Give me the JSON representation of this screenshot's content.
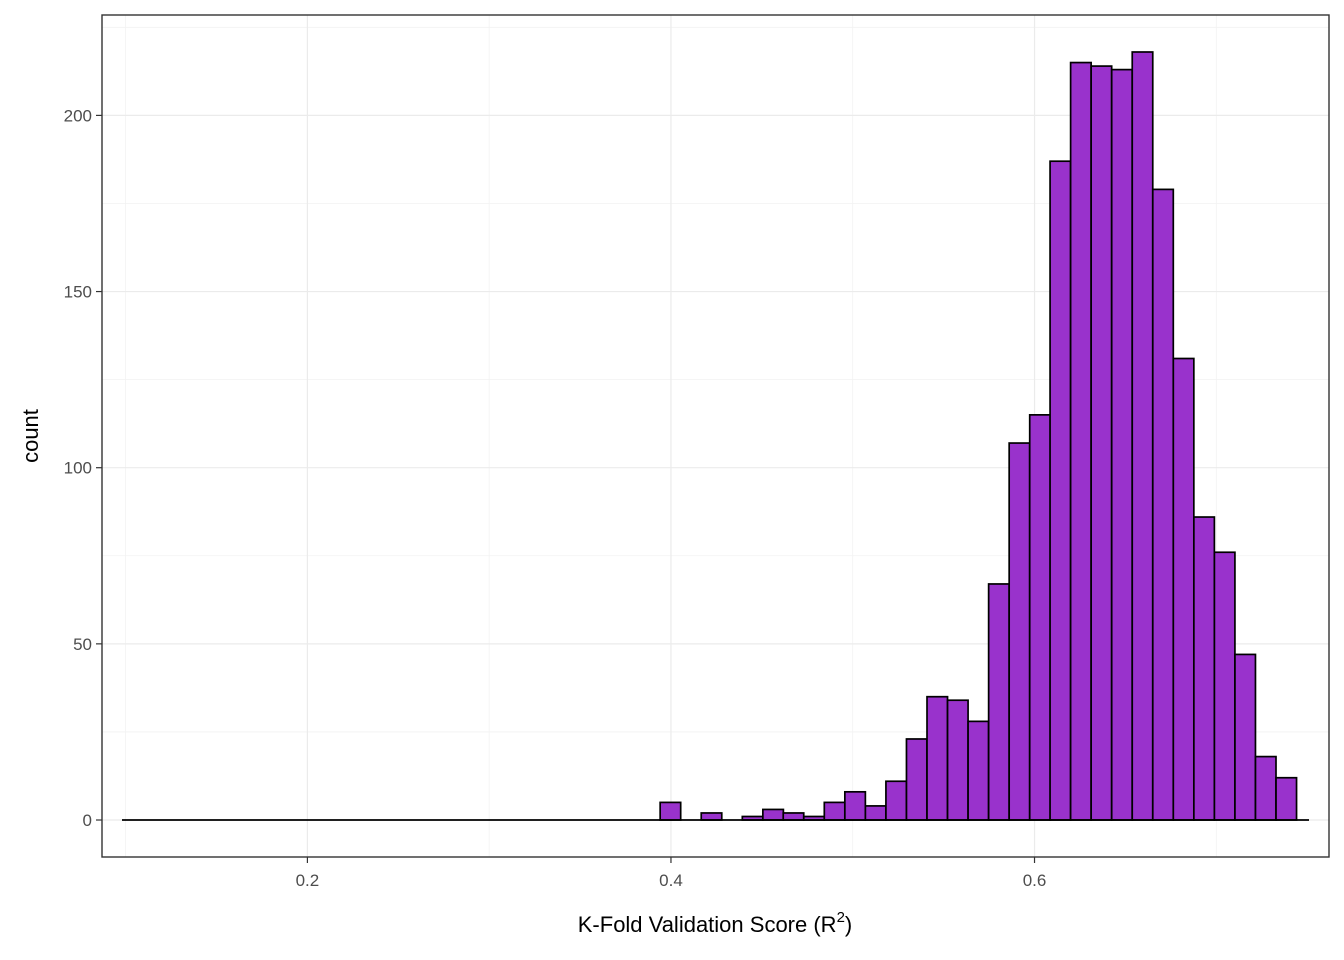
{
  "chart_data": {
    "type": "bar",
    "subtype": "histogram",
    "title": "",
    "xlabel": "K-Fold Validation Score (R",
    "xlabel_sup": "2",
    "xlabel_end": ")",
    "ylabel": "count",
    "xlim": [
      0.087,
      0.762
    ],
    "ylim": [
      -10.5,
      228.5
    ],
    "x_ticks": [
      0.2,
      0.4,
      0.6
    ],
    "x_tick_labels": [
      "0.2",
      "0.4",
      "0.6"
    ],
    "y_ticks": [
      0,
      50,
      100,
      150,
      200
    ],
    "y_tick_labels": [
      "0",
      "50",
      "100",
      "150",
      "200"
    ],
    "grid": true,
    "bin_width": 0.01129,
    "baseline_x": [
      0.098,
      0.751
    ],
    "bins": [
      {
        "x": 0.3997,
        "count": 5
      },
      {
        "x": 0.411,
        "count": 0
      },
      {
        "x": 0.4223,
        "count": 2
      },
      {
        "x": 0.4336,
        "count": 0
      },
      {
        "x": 0.4449,
        "count": 1
      },
      {
        "x": 0.4562,
        "count": 3
      },
      {
        "x": 0.4674,
        "count": 2
      },
      {
        "x": 0.4787,
        "count": 1
      },
      {
        "x": 0.49,
        "count": 5
      },
      {
        "x": 0.5013,
        "count": 8
      },
      {
        "x": 0.5126,
        "count": 4
      },
      {
        "x": 0.5239,
        "count": 11
      },
      {
        "x": 0.5352,
        "count": 23
      },
      {
        "x": 0.5465,
        "count": 35
      },
      {
        "x": 0.5578,
        "count": 34
      },
      {
        "x": 0.5691,
        "count": 28
      },
      {
        "x": 0.5804,
        "count": 67
      },
      {
        "x": 0.5917,
        "count": 107
      },
      {
        "x": 0.603,
        "count": 115
      },
      {
        "x": 0.6142,
        "count": 187
      },
      {
        "x": 0.6255,
        "count": 215
      },
      {
        "x": 0.6368,
        "count": 214
      },
      {
        "x": 0.6481,
        "count": 213
      },
      {
        "x": 0.6594,
        "count": 218
      },
      {
        "x": 0.6707,
        "count": 179
      },
      {
        "x": 0.682,
        "count": 131
      },
      {
        "x": 0.6933,
        "count": 86
      },
      {
        "x": 0.7046,
        "count": 76
      },
      {
        "x": 0.7159,
        "count": 47
      },
      {
        "x": 0.7272,
        "count": 18
      },
      {
        "x": 0.7385,
        "count": 12
      }
    ],
    "colors": {
      "bar_fill": "#9932CC",
      "bar_stroke": "#000000",
      "panel_border": "#333333",
      "grid": "#ebebeb"
    }
  }
}
